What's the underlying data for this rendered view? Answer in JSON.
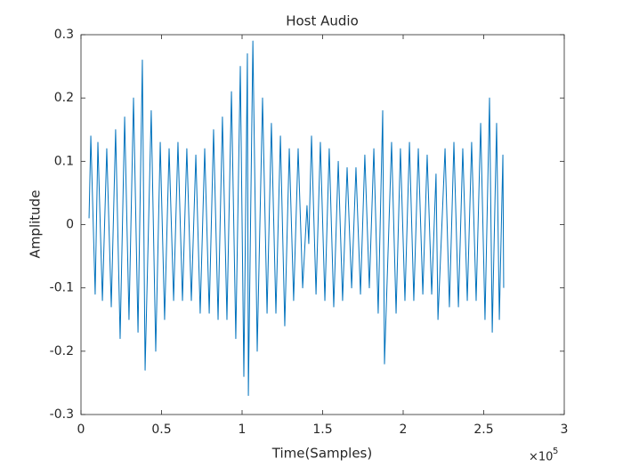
{
  "chart_data": {
    "type": "line",
    "title": "Host Audio",
    "x_label": "Time(Samples)",
    "y_label": "Amplitude",
    "x_exponent": {
      "base": "×10",
      "power": "5"
    },
    "xlim": [
      0,
      300000
    ],
    "ylim": [
      -0.3,
      0.3
    ],
    "xticks": [
      0,
      {
        "value": 50000,
        "label": "0.5"
      },
      {
        "value": 100000,
        "label": "1"
      },
      {
        "value": 150000,
        "label": "1.5"
      },
      {
        "value": 200000,
        "label": "2"
      },
      {
        "value": 250000,
        "label": "2.5"
      },
      {
        "value": 300000,
        "label": "3"
      }
    ],
    "yticks": [
      -0.3,
      -0.2,
      -0.1,
      0,
      0.1,
      0.2,
      0.3
    ],
    "grid": false,
    "x": [
      5000,
      6100,
      8800,
      10500,
      13300,
      16000,
      18800,
      21500,
      24300,
      27100,
      29800,
      32600,
      35400,
      38100,
      39800,
      43600,
      46400,
      49200,
      51900,
      54700,
      57500,
      60200,
      63000,
      65700,
      68500,
      71300,
      74000,
      76800,
      79600,
      82300,
      85100,
      87800,
      90600,
      93400,
      96100,
      98900,
      101100,
      103300,
      103900,
      106700,
      109400,
      112700,
      115500,
      118200,
      121000,
      123800,
      126500,
      129300,
      132000,
      134800,
      137600,
      140300,
      141400,
      143100,
      145900,
      148600,
      151400,
      154100,
      156900,
      159700,
      162400,
      165200,
      168000,
      170700,
      173500,
      176200,
      179000,
      181800,
      184500,
      187300,
      188400,
      192800,
      195600,
      198300,
      201100,
      203900,
      206600,
      209400,
      212200,
      214900,
      217700,
      220400,
      221600,
      226000,
      228700,
      231500,
      234300,
      237000,
      239800,
      242500,
      245300,
      248100,
      250800,
      253600,
      255300,
      258000,
      259700,
      261900,
      262400
    ],
    "series": [
      {
        "name": "Host Audio",
        "color": "#0072bd",
        "values": [
          0.01,
          0.14,
          -0.11,
          0.13,
          -0.12,
          0.12,
          -0.13,
          0.15,
          -0.18,
          0.17,
          -0.15,
          0.2,
          -0.17,
          0.26,
          -0.23,
          0.18,
          -0.2,
          0.13,
          -0.15,
          0.12,
          -0.12,
          0.13,
          -0.12,
          0.12,
          -0.12,
          0.11,
          -0.14,
          0.12,
          -0.14,
          0.15,
          -0.15,
          0.17,
          -0.15,
          0.21,
          -0.18,
          0.25,
          -0.24,
          0.27,
          -0.27,
          0.29,
          -0.2,
          0.2,
          -0.14,
          0.16,
          -0.14,
          0.14,
          -0.16,
          0.12,
          -0.12,
          0.12,
          -0.1,
          0.03,
          -0.03,
          0.14,
          -0.11,
          0.13,
          -0.12,
          0.12,
          -0.13,
          0.1,
          -0.12,
          0.09,
          -0.1,
          0.09,
          -0.11,
          0.11,
          -0.1,
          0.12,
          -0.14,
          0.18,
          -0.22,
          0.13,
          -0.14,
          0.12,
          -0.12,
          0.13,
          -0.12,
          0.12,
          -0.11,
          0.11,
          -0.11,
          0.08,
          -0.15,
          0.12,
          -0.13,
          0.13,
          -0.13,
          0.12,
          -0.12,
          0.13,
          -0.12,
          0.16,
          -0.15,
          0.2,
          -0.17,
          0.16,
          -0.15,
          0.11,
          -0.1
        ]
      }
    ]
  }
}
